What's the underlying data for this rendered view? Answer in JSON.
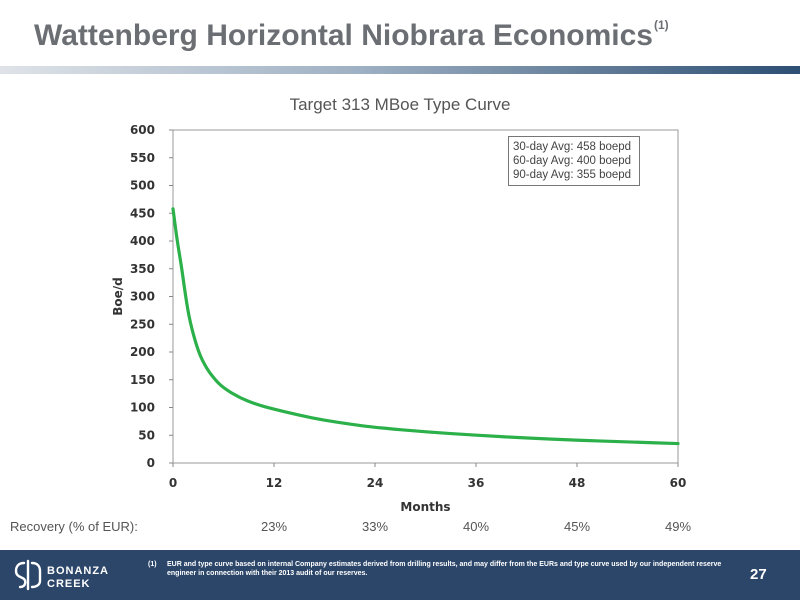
{
  "slide": {
    "title": "Wattenberg Horizontal Niobrara Economics",
    "title_footnote_ref": "(1)",
    "page_number": "27"
  },
  "chart_data": {
    "type": "line",
    "title": "Target 313 MBoe Type Curve",
    "xlabel": "Months",
    "ylabel": "Boe/d",
    "xlim": [
      0,
      60
    ],
    "ylim": [
      0,
      600
    ],
    "x_ticks": [
      "0",
      "12",
      "24",
      "36",
      "48",
      "60"
    ],
    "y_ticks": [
      "0",
      "50",
      "100",
      "150",
      "200",
      "250",
      "300",
      "350",
      "400",
      "450",
      "500",
      "550",
      "600"
    ],
    "series": [
      {
        "color": "#2bb04a",
        "x": [
          0,
          0.5,
          1,
          1.5,
          2,
          3,
          4,
          5,
          6,
          8,
          10,
          12,
          15,
          18,
          21,
          24,
          30,
          36,
          42,
          48,
          54,
          60
        ],
        "y": [
          458,
          400,
          355,
          300,
          255,
          200,
          170,
          150,
          135,
          117,
          105,
          97,
          86,
          77,
          70,
          64,
          56,
          50,
          45,
          41,
          38,
          35
        ]
      }
    ],
    "annotation_lines": [
      "30-day Avg: 458 boepd",
      "60-day Avg: 400 boepd",
      "90-day Avg: 355 boepd"
    ],
    "grid": false
  },
  "recovery": {
    "label": "Recovery (% of EUR):",
    "values": [
      {
        "month": 12,
        "text": "23%"
      },
      {
        "month": 24,
        "text": "33%"
      },
      {
        "month": 36,
        "text": "40%"
      },
      {
        "month": 48,
        "text": "45%"
      },
      {
        "month": 60,
        "text": "49%"
      }
    ]
  },
  "footer": {
    "logo_lines": [
      "BONANZA",
      "CREEK"
    ],
    "footnote_marker": "(1)",
    "footnote_text": "EUR and type curve based on internal Company estimates derived from drilling results, and may differ from the EURs and type curve used by our independent reserve engineer in connection with their 2013 audit of our reserves."
  }
}
